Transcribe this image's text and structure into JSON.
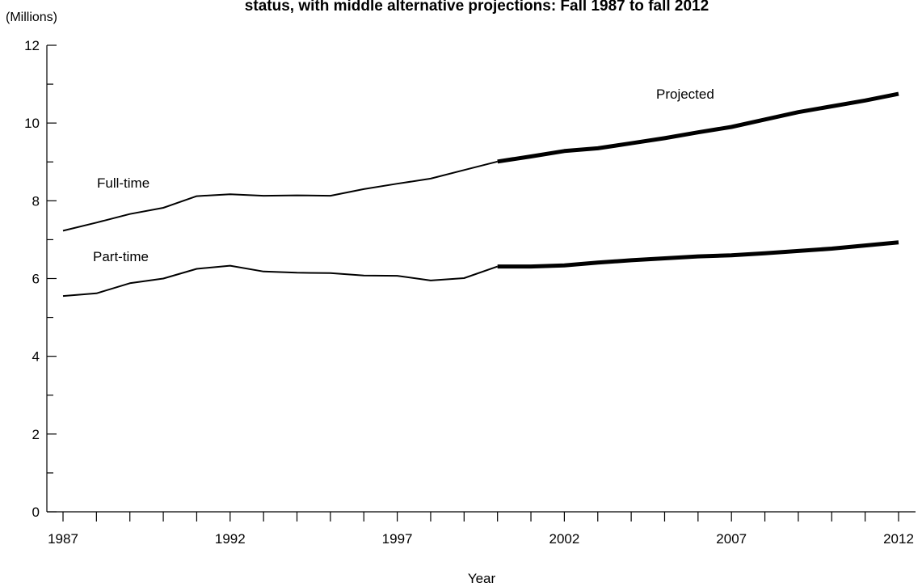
{
  "chart_data": {
    "type": "line",
    "title": "status, with middle alternative projections: Fall 1987 to fall 2012",
    "unit_label": "(Millions)",
    "xlabel": "Year",
    "ylabel": "",
    "ylim": [
      0,
      12
    ],
    "xlim": [
      1987,
      2012
    ],
    "y_ticks": [
      0,
      2,
      4,
      6,
      8,
      10,
      12
    ],
    "x_tick_labels": [
      1987,
      1992,
      1997,
      2002,
      2007,
      2012
    ],
    "grid": false,
    "annotations": [
      "Full-time",
      "Part-time",
      "Projected"
    ],
    "series": [
      {
        "name": "Full-time",
        "historical": {
          "x": [
            1987,
            1988,
            1989,
            1990,
            1991,
            1992,
            1993,
            1994,
            1995,
            1996,
            1997,
            1998,
            1999,
            2000
          ],
          "y": [
            7.23,
            7.44,
            7.66,
            7.82,
            8.12,
            8.17,
            8.13,
            8.14,
            8.13,
            8.3,
            8.44,
            8.57,
            8.79,
            9.01
          ]
        },
        "projected": {
          "x": [
            2000,
            2001,
            2002,
            2003,
            2004,
            2005,
            2006,
            2007,
            2008,
            2009,
            2010,
            2011,
            2012
          ],
          "y": [
            9.01,
            9.14,
            9.28,
            9.35,
            9.48,
            9.61,
            9.76,
            9.9,
            10.09,
            10.28,
            10.43,
            10.58,
            10.75
          ]
        }
      },
      {
        "name": "Part-time",
        "historical": {
          "x": [
            1987,
            1988,
            1989,
            1990,
            1991,
            1992,
            1993,
            1994,
            1995,
            1996,
            1997,
            1998,
            1999,
            2000
          ],
          "y": [
            5.55,
            5.62,
            5.88,
            6.0,
            6.25,
            6.33,
            6.18,
            6.15,
            6.14,
            6.08,
            6.07,
            5.95,
            6.01,
            6.31
          ]
        },
        "projected": {
          "x": [
            2000,
            2001,
            2002,
            2003,
            2004,
            2005,
            2006,
            2007,
            2008,
            2009,
            2010,
            2011,
            2012
          ],
          "y": [
            6.31,
            6.31,
            6.34,
            6.41,
            6.47,
            6.52,
            6.57,
            6.6,
            6.65,
            6.71,
            6.77,
            6.85,
            6.93
          ]
        }
      }
    ]
  }
}
